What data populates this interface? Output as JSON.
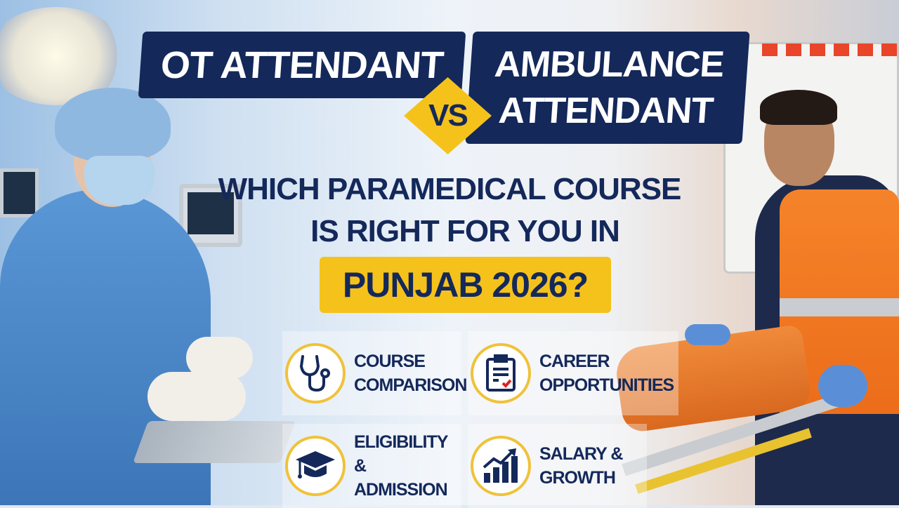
{
  "title": {
    "left": "OT ATTENDANT",
    "vs": "VS",
    "right_line1": "AMBULANCE",
    "right_line2": "ATTENDANT"
  },
  "subtitle": {
    "line1": "WHICH PARAMEDICAL COURSE",
    "line2": "IS RIGHT FOR YOU IN",
    "highlight": "PUNJAB 2026?"
  },
  "features": [
    {
      "icon": "stethoscope-icon",
      "line1": "COURSE",
      "line2": "COMPARISON"
    },
    {
      "icon": "clipboard-icon",
      "line1": "CAREER",
      "line2": "OPPORTUNITIES"
    },
    {
      "icon": "graduation-cap-icon",
      "line1": "ELIGIBILITY &",
      "line2": "ADMISSION"
    },
    {
      "icon": "growth-chart-icon",
      "line1": "SALARY &",
      "line2": "GROWTH"
    }
  ],
  "colors": {
    "navy": "#14285a",
    "yellow": "#f5c21b",
    "scrubs": "#4a86c8",
    "vest": "#f07a1e"
  }
}
